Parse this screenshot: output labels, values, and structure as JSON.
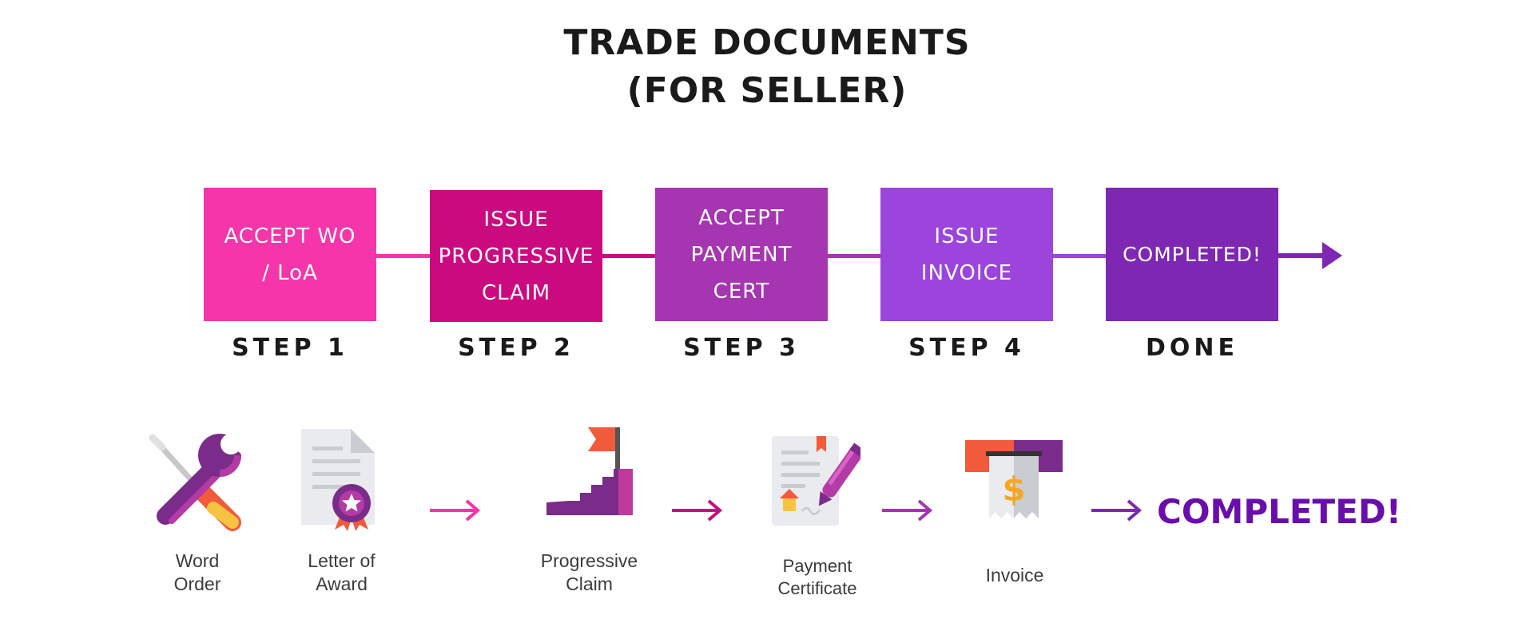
{
  "title": {
    "line1": "TRADE DOCUMENTS",
    "line2": "(FOR SELLER)"
  },
  "steps": [
    {
      "box_text": "ACCEPT WO\n/ LoA",
      "label": "STEP 1",
      "color": "#f535a9"
    },
    {
      "box_text": "ISSUE\nPROGRESSIVE\nCLAIM",
      "label": "STEP 2",
      "color": "#cc0a80"
    },
    {
      "box_text": "ACCEPT\nPAYMENT\nCERT",
      "label": "STEP 3",
      "color": "#a535b0"
    },
    {
      "box_text": "ISSUE\nINVOICE",
      "label": "STEP 4",
      "color": "#9b45dc"
    },
    {
      "box_text": "COMPLETED!",
      "label": "DONE",
      "color": "#7e27b3"
    }
  ],
  "documents": [
    {
      "caption": "Word\nOrder",
      "icon": "wrench-screwdriver-icon"
    },
    {
      "caption": "Letter of\nAward",
      "icon": "certificate-icon"
    },
    {
      "caption": "Progressive\nClaim",
      "icon": "stairs-flag-icon"
    },
    {
      "caption": "Payment\nCertificate",
      "icon": "signed-document-icon"
    },
    {
      "caption": "Invoice",
      "icon": "receipt-dollar-icon"
    }
  ],
  "completed_text": "COMPLETED!",
  "arrow_colors": [
    "#f535a9",
    "#cc0a80",
    "#a535b0",
    "#7e27b3"
  ]
}
